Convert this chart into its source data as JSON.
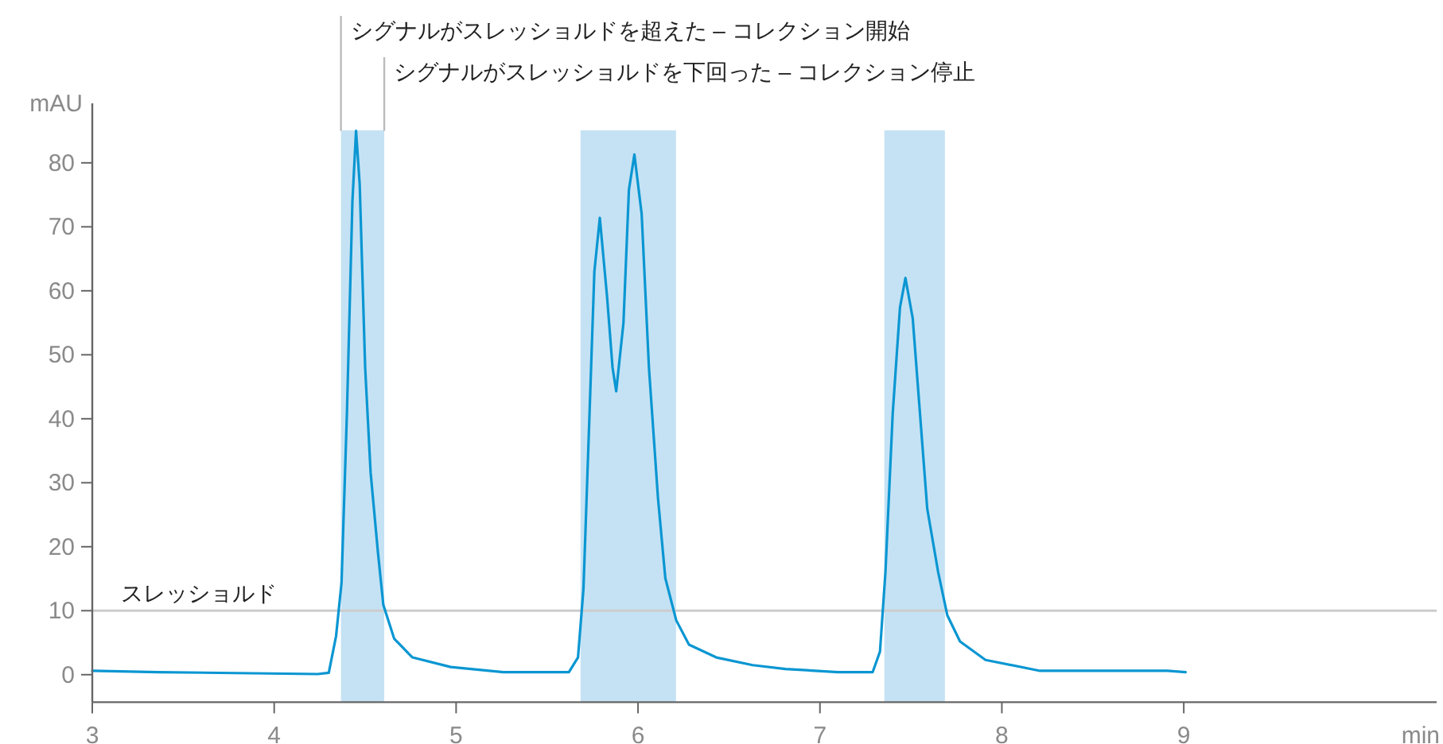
{
  "chart_data": {
    "type": "line",
    "xlabel": "min",
    "ylabel": "mAU",
    "xlim": [
      3,
      10.39
    ],
    "ylim": [
      -4.3,
      89.3
    ],
    "xticks": [
      3,
      4,
      5,
      6,
      7,
      8,
      9
    ],
    "yticks": [
      0,
      10,
      20,
      30,
      40,
      50,
      60,
      70,
      80
    ],
    "grid": false,
    "series": [
      {
        "color": "#0a96d2",
        "x": [
          3.0,
          3.36,
          4.24,
          4.3,
          4.34,
          4.37,
          4.4,
          4.43,
          4.45,
          4.47,
          4.5,
          4.53,
          4.57,
          4.6,
          4.66,
          4.76,
          4.97,
          5.26,
          5.62,
          5.67,
          5.7,
          5.73,
          5.76,
          5.79,
          5.83,
          5.86,
          5.88,
          5.92,
          5.95,
          5.98,
          6.02,
          6.06,
          6.11,
          6.15,
          6.21,
          6.28,
          6.43,
          6.63,
          6.81,
          7.1,
          7.29,
          7.33,
          7.36,
          7.4,
          7.44,
          7.47,
          7.51,
          7.55,
          7.59,
          7.65,
          7.7,
          7.77,
          7.91,
          8.21,
          8.91,
          9.01
        ],
        "values": [
          0.6,
          0.4,
          0.1,
          0.3,
          6,
          14.3,
          41,
          74,
          85,
          76.6,
          48,
          31.6,
          19.2,
          10.9,
          5.6,
          2.7,
          1.2,
          0.4,
          0.4,
          2.7,
          13.4,
          38,
          63,
          71.4,
          59,
          48,
          44.3,
          55,
          75.8,
          81.3,
          72,
          48,
          27.5,
          15.1,
          8.5,
          4.7,
          2.7,
          1.5,
          0.9,
          0.4,
          0.4,
          3.6,
          16,
          40.8,
          57.4,
          62,
          55.7,
          40.8,
          25.9,
          16,
          9.3,
          5.2,
          2.3,
          0.6,
          0.6,
          0.4
        ]
      }
    ],
    "bands": [
      {
        "axis": "x",
        "from": 4.367,
        "to": 4.605,
        "color": "#c5e2f4"
      },
      {
        "axis": "x",
        "from": 5.684,
        "to": 6.209,
        "color": "#c5e2f4"
      },
      {
        "axis": "x",
        "from": 7.354,
        "to": 7.687,
        "color": "#c5e2f4"
      }
    ],
    "ref_lines": [
      {
        "axis": "y",
        "value": 10,
        "label": "スレッショルド",
        "color": "#cccccc"
      }
    ],
    "annotations": [
      {
        "text": "シグナルがスレッショルドを超えた – コレクション開始",
        "x": 4.367,
        "y": 85
      },
      {
        "text": "シグナルがスレッショルドを下回った – コレクション停止",
        "x": 4.605,
        "y": 85
      }
    ]
  }
}
